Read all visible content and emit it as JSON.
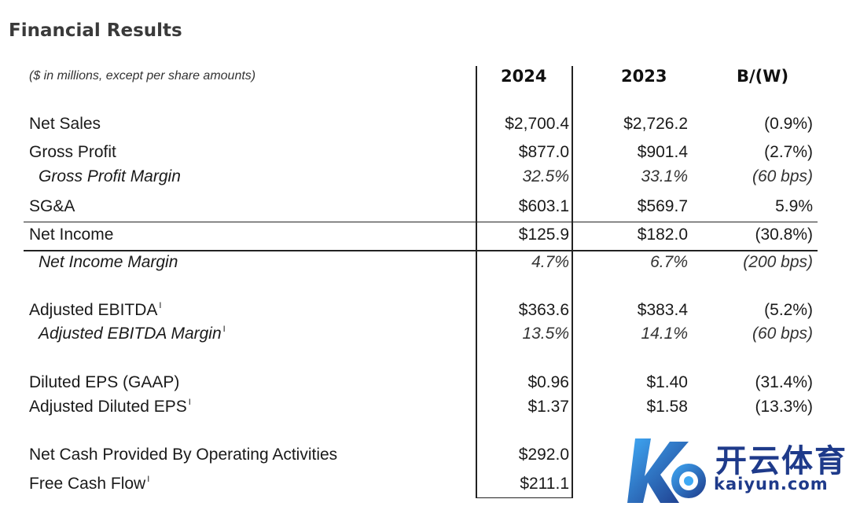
{
  "title": "Financial Results",
  "note": "($ in millions, except per share amounts)",
  "headers": {
    "y2024": "2024",
    "y2023": "2023",
    "change": "B/(W)"
  },
  "footnote_mark": "I",
  "rows": {
    "net_sales": {
      "label": "Net Sales",
      "v2024": "$2,700.4",
      "v2023": "$2,726.2",
      "change": "(0.9%)"
    },
    "gross_profit": {
      "label": "Gross Profit",
      "v2024": "$877.0",
      "v2023": "$901.4",
      "change": "(2.7%)"
    },
    "gross_margin": {
      "label": "Gross Profit Margin",
      "v2024": "32.5%",
      "v2023": "33.1%",
      "change": "(60 bps)"
    },
    "sga": {
      "label": "SG&A",
      "v2024": "$603.1",
      "v2023": "$569.7",
      "change": "5.9%"
    },
    "net_income": {
      "label": "Net Income",
      "v2024": "$125.9",
      "v2023": "$182.0",
      "change": "(30.8%)"
    },
    "net_income_margin": {
      "label": "Net Income Margin",
      "v2024": "4.7%",
      "v2023": "6.7%",
      "change": "(200 bps)"
    },
    "adj_ebitda": {
      "label": "Adjusted EBITDA",
      "v2024": "$363.6",
      "v2023": "$383.4",
      "change": "(5.2%)"
    },
    "adj_ebitda_margin": {
      "label": "Adjusted EBITDA Margin",
      "v2024": "13.5%",
      "v2023": "14.1%",
      "change": "(60 bps)"
    },
    "diluted_eps": {
      "label": "Diluted EPS (GAAP)",
      "v2024": "$0.96",
      "v2023": "$1.40",
      "change": "(31.4%)"
    },
    "adj_diluted_eps": {
      "label": "Adjusted Diluted EPS",
      "v2024": "$1.37",
      "v2023": "$1.58",
      "change": "(13.3%)"
    },
    "op_cash": {
      "label": "Net Cash Provided By Operating Activities",
      "v2024": "$292.0"
    },
    "fcf": {
      "label": "Free Cash Flow",
      "v2024": "$211.1"
    }
  },
  "watermark": {
    "text": "开云体育",
    "sub": "kaiyun.com"
  },
  "colors": {
    "rule": "#222222",
    "watermark": "#1e3a8a",
    "watermark_light": "#3fa9f5"
  }
}
